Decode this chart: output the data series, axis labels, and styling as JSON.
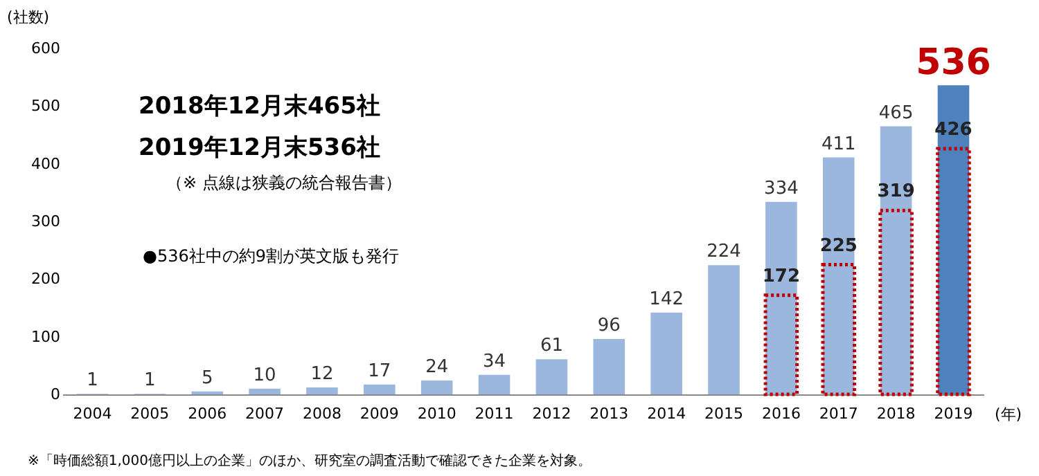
{
  "chart_data": {
    "type": "bar",
    "ylabel": "(社数)",
    "xlabel": "(年)",
    "categories": [
      "2004",
      "2005",
      "2006",
      "2007",
      "2008",
      "2009",
      "2010",
      "2011",
      "2012",
      "2013",
      "2014",
      "2015",
      "2016",
      "2017",
      "2018",
      "2019"
    ],
    "series": [
      {
        "colors": [
          "#9bb7dd",
          "#9bb7dd",
          "#9bb7dd",
          "#9bb7dd",
          "#9bb7dd",
          "#9bb7dd",
          "#9bb7dd",
          "#9bb7dd",
          "#9bb7dd",
          "#9bb7dd",
          "#9bb7dd",
          "#9bb7dd",
          "#9bb7dd",
          "#9bb7dd",
          "#9bb7dd",
          "#4f81bd"
        ],
        "values": [
          1,
          1,
          5,
          10,
          12,
          17,
          24,
          34,
          61,
          96,
          142,
          224,
          334,
          411,
          465,
          536
        ]
      },
      {
        "color": "#c00000",
        "line_style": "dotted",
        "values": [
          null,
          null,
          null,
          null,
          null,
          null,
          null,
          null,
          null,
          null,
          null,
          null,
          172,
          225,
          319,
          426
        ]
      }
    ],
    "ylim": [
      0,
      600
    ],
    "yticks": [
      0,
      100,
      200,
      300,
      400,
      500,
      600
    ],
    "data_labels": true,
    "grid": false,
    "annotations": [
      "2018年12月末465社",
      "2019年12月末536社",
      "（※ 点線は狭義の統合報告書）",
      "●536社中の約9割が英文版も発行",
      "※「時価総額1,000億円以上の企業」のほか、研究室の調査活動で確認できた企業を対象。"
    ]
  }
}
